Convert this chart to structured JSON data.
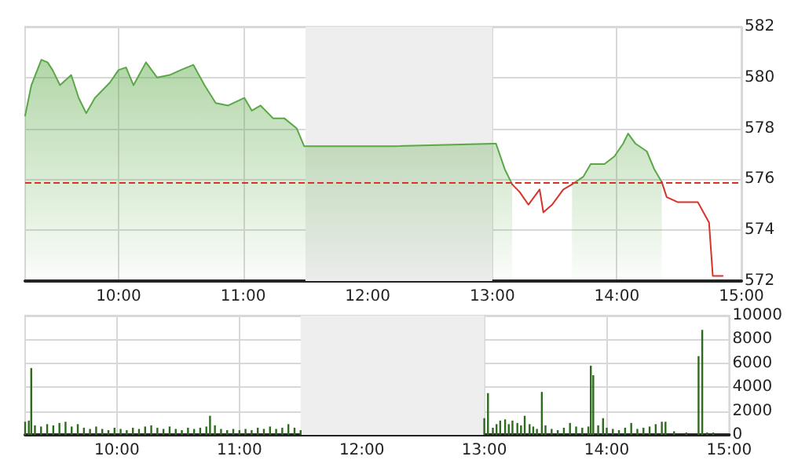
{
  "chart_data": [
    {
      "type": "area",
      "xlim": [
        9.25,
        15
      ],
      "ylim": [
        572,
        582
      ],
      "xticks": [
        {
          "value": 10,
          "label": "10:00"
        },
        {
          "value": 11,
          "label": "11:00"
        },
        {
          "value": 12,
          "label": "12:00"
        },
        {
          "value": 13,
          "label": "13:00"
        },
        {
          "value": 14,
          "label": "14:00"
        },
        {
          "value": 15,
          "label": "15:00"
        }
      ],
      "yticks": [
        572,
        574,
        576,
        578,
        580,
        582
      ],
      "grid": true,
      "marker": "none",
      "line_style": "solid",
      "bands": [
        {
          "axis": "x",
          "from": 11.5,
          "to": 13,
          "color": "#eeeeee"
        }
      ],
      "ref_lines": [
        {
          "axis": "y",
          "value": 575.9,
          "color": "#d9322b",
          "line_style": "dashed"
        }
      ],
      "series": [
        {
          "color": "#5aa845",
          "x": [
            9.25,
            9.3,
            9.38,
            9.43,
            9.47,
            9.53,
            9.62,
            9.68,
            9.74,
            9.81,
            9.87,
            9.93,
            10.0,
            10.06,
            10.12,
            10.22,
            10.31,
            10.41,
            10.5,
            10.6,
            10.69,
            10.78,
            10.88,
            11.01,
            11.07,
            11.14,
            11.24,
            11.33,
            11.43,
            11.49,
            12.21,
            13.01,
            13.03,
            13.1,
            13.16,
            13.22,
            13.64,
            13.73,
            13.79,
            13.9,
            13.98,
            14.05,
            14.09,
            14.15,
            14.24,
            14.3,
            14.36
          ],
          "values": [
            578.5,
            579.7,
            580.7,
            580.6,
            580.3,
            579.7,
            580.1,
            579.2,
            578.6,
            579.2,
            579.5,
            579.8,
            580.3,
            580.4,
            579.7,
            580.6,
            580.0,
            580.1,
            580.3,
            580.5,
            579.7,
            579.0,
            578.9,
            579.2,
            578.7,
            578.9,
            578.4,
            578.4,
            578.0,
            577.3,
            577.3,
            577.4,
            577.4,
            576.4,
            575.8,
            null,
            575.8,
            576.1,
            576.6,
            576.6,
            576.9,
            577.4,
            577.8,
            577.4,
            577.1,
            576.4,
            575.9
          ]
        },
        {
          "type": "line",
          "color": "#d9322b",
          "x": [
            13.16,
            13.22,
            13.29,
            13.38,
            13.41,
            13.48,
            13.57,
            13.64,
            13.9,
            14.36,
            14.4,
            14.49,
            14.65,
            14.74,
            14.77,
            14.85
          ],
          "values": [
            575.8,
            575.5,
            575.0,
            575.6,
            574.7,
            575.0,
            575.6,
            575.8,
            null,
            575.9,
            575.3,
            575.1,
            575.1,
            574.3,
            572.2,
            572.2
          ]
        }
      ]
    },
    {
      "type": "bar",
      "xlim": [
        9.25,
        15
      ],
      "ylim": [
        0,
        10000
      ],
      "xticks": [
        {
          "value": 10,
          "label": "10:00"
        },
        {
          "value": 11,
          "label": "11:00"
        },
        {
          "value": 12,
          "label": "12:00"
        },
        {
          "value": 13,
          "label": "13:00"
        },
        {
          "value": 14,
          "label": "14:00"
        },
        {
          "value": 15,
          "label": "15:00"
        }
      ],
      "yticks": [
        0,
        2000,
        4000,
        6000,
        8000,
        10000
      ],
      "grid": true,
      "bands": [
        {
          "axis": "x",
          "from": 11.5,
          "to": 13,
          "color": "#eeeeee"
        }
      ],
      "series": [
        {
          "color": "#2e6b1f",
          "x": [
            9.25,
            9.28,
            9.3,
            9.33,
            9.38,
            9.43,
            9.48,
            9.53,
            9.58,
            9.63,
            9.68,
            9.73,
            9.78,
            9.83,
            9.88,
            9.93,
            9.98,
            10.03,
            10.08,
            10.13,
            10.18,
            10.23,
            10.28,
            10.33,
            10.38,
            10.43,
            10.48,
            10.53,
            10.58,
            10.63,
            10.68,
            10.73,
            10.76,
            10.8,
            10.85,
            10.9,
            10.95,
            11.0,
            11.05,
            11.1,
            11.15,
            11.2,
            11.25,
            11.3,
            11.35,
            11.4,
            11.45,
            11.5,
            13.0,
            13.03,
            13.07,
            13.1,
            13.13,
            13.17,
            13.2,
            13.23,
            13.27,
            13.3,
            13.33,
            13.37,
            13.4,
            13.43,
            13.47,
            13.5,
            13.55,
            13.6,
            13.65,
            13.7,
            13.75,
            13.8,
            13.85,
            13.87,
            13.89,
            13.93,
            13.97,
            14.0,
            14.05,
            14.1,
            14.15,
            14.2,
            14.25,
            14.3,
            14.35,
            14.4,
            14.45,
            14.48,
            14.55,
            14.65,
            14.75,
            14.78,
            14.82,
            14.87
          ],
          "values": [
            1100,
            1200,
            5600,
            800,
            700,
            900,
            800,
            1000,
            1100,
            700,
            900,
            600,
            500,
            700,
            500,
            400,
            600,
            500,
            400,
            600,
            500,
            700,
            800,
            600,
            500,
            700,
            500,
            400,
            600,
            500,
            600,
            700,
            1600,
            800,
            500,
            400,
            500,
            400,
            500,
            400,
            600,
            500,
            700,
            500,
            600,
            900,
            600,
            400,
            1400,
            3500,
            600,
            900,
            1200,
            1300,
            900,
            1200,
            1000,
            800,
            1600,
            900,
            700,
            500,
            3600,
            800,
            500,
            400,
            600,
            1000,
            700,
            600,
            700,
            5800,
            5000,
            800,
            1400,
            600,
            500,
            400,
            600,
            1000,
            500,
            600,
            700,
            900,
            1100,
            1100,
            300,
            200,
            6600,
            8800,
            200,
            200
          ]
        }
      ]
    }
  ]
}
